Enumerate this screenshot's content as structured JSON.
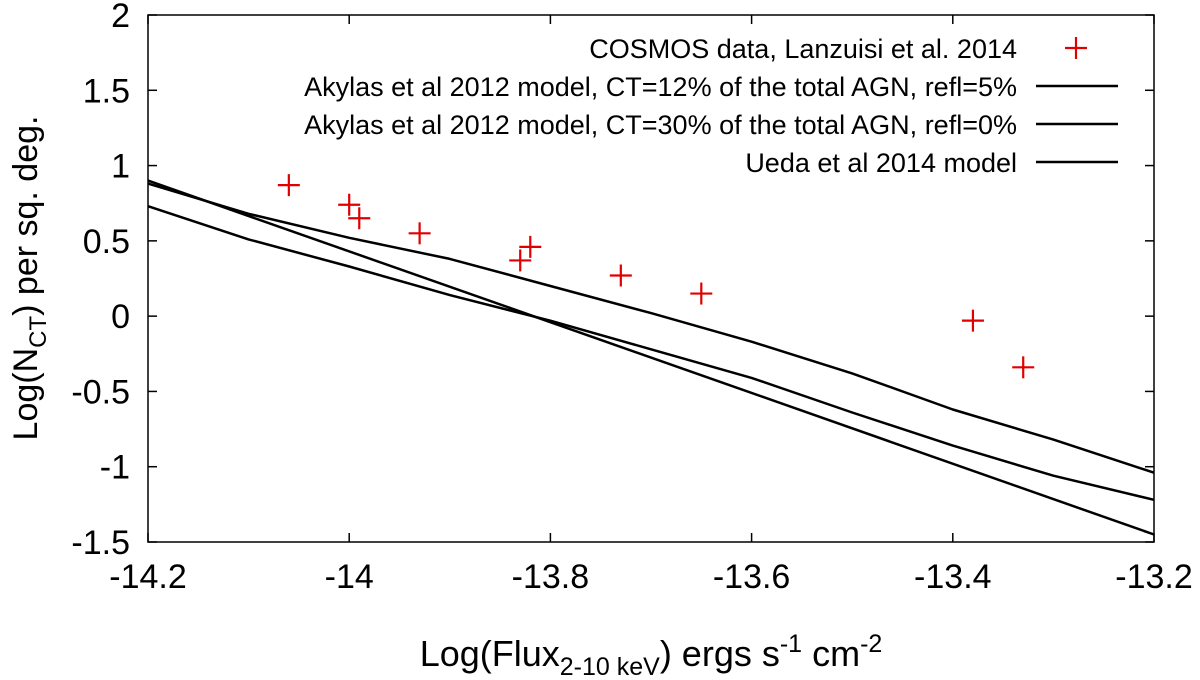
{
  "chart_data": {
    "type": "line",
    "title": "",
    "xlabel": {
      "prefix": "Log(Flux",
      "sub": "2-10 keV",
      "suffix": ") ergs s",
      "sup1": "-1",
      "mid": " cm",
      "sup2": "-2"
    },
    "ylabel": {
      "prefix": "Log(N",
      "sub": "CT",
      "suffix": ") per sq. deg."
    },
    "xlim": [
      -14.2,
      -13.2
    ],
    "ylim": [
      -1.5,
      2
    ],
    "xticks": [
      -14.2,
      -14,
      -13.8,
      -13.6,
      -13.4,
      -13.2
    ],
    "xtick_labels": [
      "-14.2",
      "-14",
      "-13.8",
      "-13.6",
      "-13.4",
      "-13.2"
    ],
    "yticks": [
      -1.5,
      -1,
      -0.5,
      0,
      0.5,
      1,
      1.5,
      2
    ],
    "ytick_labels": [
      "-1.5",
      "-1",
      "-0.5",
      "0",
      "0.5",
      "1",
      "1.5",
      "2"
    ],
    "grid": false,
    "legend_position": "top-right",
    "series": [
      {
        "name": "COSMOS data, Lanzuisi et al. 2014",
        "style": "points",
        "marker": "+",
        "color": "#e00000",
        "x": [
          -14.06,
          -14.0,
          -13.99,
          -13.93,
          -13.83,
          -13.82,
          -13.73,
          -13.65,
          -13.38,
          -13.33
        ],
        "y": [
          0.87,
          0.74,
          0.65,
          0.55,
          0.37,
          0.46,
          0.27,
          0.15,
          -0.03,
          -0.34
        ]
      },
      {
        "name": "Akylas et al 2012 model, CT=12% of the total AGN, refl=5%",
        "style": "line",
        "color": "#000000",
        "x": [
          -14.2,
          -14.1,
          -14.0,
          -13.9,
          -13.8,
          -13.7,
          -13.6,
          -13.5,
          -13.4,
          -13.3,
          -13.2
        ],
        "y": [
          0.88,
          0.68,
          0.52,
          0.38,
          0.2,
          0.02,
          -0.17,
          -0.38,
          -0.62,
          -0.82,
          -1.04
        ]
      },
      {
        "name": "Akylas et al 2012 model, CT=30% of the total AGN, refl=0%",
        "style": "line",
        "color": "#000000",
        "x": [
          -14.2,
          -14.1,
          -14.0,
          -13.9,
          -13.8,
          -13.7,
          -13.6,
          -13.5,
          -13.4,
          -13.3,
          -13.2
        ],
        "y": [
          0.73,
          0.51,
          0.33,
          0.14,
          -0.03,
          -0.22,
          -0.41,
          -0.64,
          -0.86,
          -1.06,
          -1.22
        ]
      },
      {
        "name": "Ueda et al 2014 model",
        "style": "line",
        "color": "#000000",
        "x": [
          -14.2,
          -13.2
        ],
        "y": [
          0.9,
          -1.45
        ]
      }
    ]
  }
}
